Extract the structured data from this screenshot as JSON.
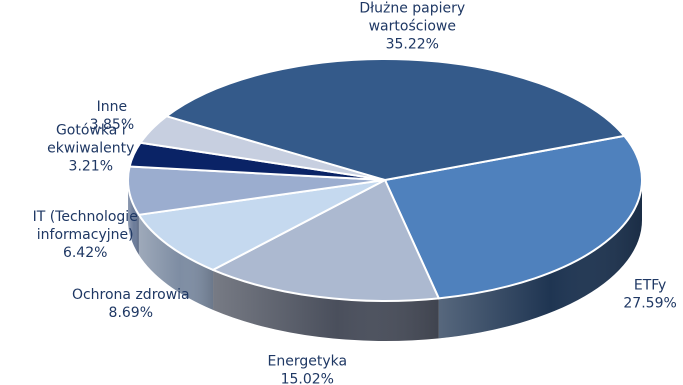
{
  "chart_data": {
    "type": "pie",
    "title": "",
    "slices": [
      {
        "key": "etfy",
        "lines": [
          "ETFy"
        ],
        "pct_label": "27.59%",
        "value": 27.59,
        "color": "#4f81bd",
        "side": "#1f3552"
      },
      {
        "key": "energetyka",
        "lines": [
          "Energetyka"
        ],
        "pct_label": "15.02%",
        "value": 15.02,
        "color": "#acb9d0",
        "side": "#4a4f5c"
      },
      {
        "key": "ochrona-zdrowia",
        "lines": [
          "Ochrona zdrowia"
        ],
        "pct_label": "8.69%",
        "value": 8.69,
        "color": "#c5d9ef",
        "side": "#7e8da3"
      },
      {
        "key": "it",
        "lines": [
          "IT (Technologie",
          "informacyjne)"
        ],
        "pct_label": "6.42%",
        "value": 6.42,
        "color": "#9badcf",
        "side": "#6b7b99"
      },
      {
        "key": "gotowka",
        "lines": [
          "Gotówka i",
          "ekwiwalenty"
        ],
        "pct_label": "3.21%",
        "value": 3.21,
        "color": "#0a2366",
        "side": "#061a4a"
      },
      {
        "key": "inne",
        "lines": [
          "Inne"
        ],
        "pct_label": "3.85%",
        "value": 3.85,
        "color": "#c7cfe0",
        "side": "#8e97ab"
      },
      {
        "key": "dluzne",
        "lines": [
          "Dłużne papiery",
          "wartościowe"
        ],
        "pct_label": "35.22%",
        "value": 35.22,
        "color": "#345a8a",
        "side": "#203a5c"
      }
    ]
  }
}
